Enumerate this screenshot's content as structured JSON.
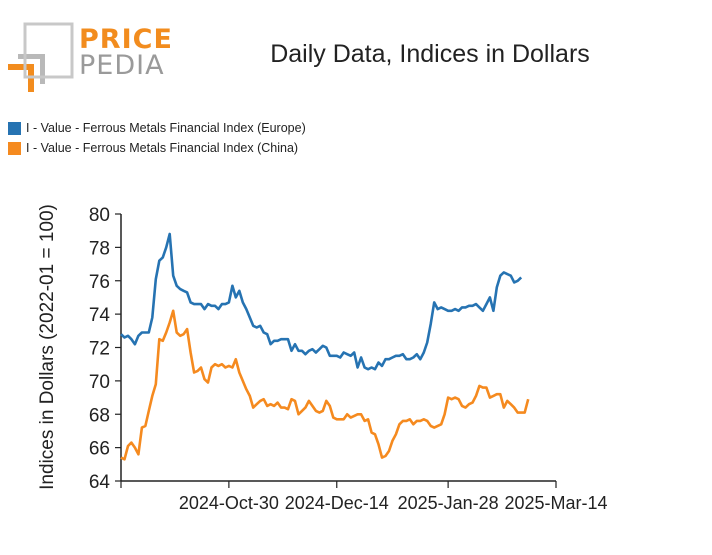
{
  "logo": {
    "line1": "PRICE",
    "line2": "PEDIA"
  },
  "chart_data": {
    "type": "line",
    "title": "Daily Data, Indices in Dollars",
    "ylabel": "Indices in Dollars (2022-01 = 100)",
    "xlabel": "",
    "ylim": [
      64,
      80
    ],
    "yticks": [
      64,
      66,
      68,
      70,
      72,
      74,
      76,
      78,
      80
    ],
    "x_range": [
      0,
      125
    ],
    "xticks": [
      {
        "x": 31,
        "label": "2024-Oct-30"
      },
      {
        "x": 62,
        "label": "2024-Dec-14"
      },
      {
        "x": 94,
        "label": "2025-Jan-28"
      },
      {
        "x": 125,
        "label": "2025-Mar-14"
      }
    ],
    "grid": false,
    "legend_position": "top-left",
    "series": [
      {
        "name": "I - Value - Ferrous Metals Financial Index (Europe)",
        "color": "#2673b2",
        "points": [
          [
            0,
            72.8
          ],
          [
            1,
            72.6
          ],
          [
            2,
            72.7
          ],
          [
            3,
            72.5
          ],
          [
            4,
            72.2
          ],
          [
            5,
            72.7
          ],
          [
            6,
            72.9
          ],
          [
            7,
            72.9
          ],
          [
            8,
            72.9
          ],
          [
            9,
            73.8
          ],
          [
            10,
            76.1
          ],
          [
            11,
            77.2
          ],
          [
            12,
            77.4
          ],
          [
            13,
            78.0
          ],
          [
            14,
            78.8
          ],
          [
            15,
            76.3
          ],
          [
            16,
            75.7
          ],
          [
            17,
            75.5
          ],
          [
            18,
            75.4
          ],
          [
            19,
            75.3
          ],
          [
            20,
            74.7
          ],
          [
            21,
            74.6
          ],
          [
            22,
            74.6
          ],
          [
            23,
            74.6
          ],
          [
            24,
            74.3
          ],
          [
            25,
            74.6
          ],
          [
            26,
            74.5
          ],
          [
            27,
            74.5
          ],
          [
            28,
            74.3
          ],
          [
            29,
            74.6
          ],
          [
            30,
            74.6
          ],
          [
            31,
            74.7
          ],
          [
            32,
            75.7
          ],
          [
            33,
            75.0
          ],
          [
            34,
            75.4
          ],
          [
            35,
            74.7
          ],
          [
            36,
            74.3
          ],
          [
            37,
            73.8
          ],
          [
            38,
            73.3
          ],
          [
            39,
            73.2
          ],
          [
            40,
            73.3
          ],
          [
            41,
            72.9
          ],
          [
            42,
            72.8
          ],
          [
            43,
            72.2
          ],
          [
            44,
            72.4
          ],
          [
            45,
            72.4
          ],
          [
            46,
            72.5
          ],
          [
            47,
            72.5
          ],
          [
            48,
            72.5
          ],
          [
            49,
            71.8
          ],
          [
            50,
            72.2
          ],
          [
            51,
            71.8
          ],
          [
            52,
            71.8
          ],
          [
            53,
            71.6
          ],
          [
            54,
            71.8
          ],
          [
            55,
            71.9
          ],
          [
            56,
            71.7
          ],
          [
            57,
            71.9
          ],
          [
            58,
            72.1
          ],
          [
            59,
            72.0
          ],
          [
            60,
            71.5
          ],
          [
            61,
            71.5
          ],
          [
            62,
            71.5
          ],
          [
            63,
            71.4
          ],
          [
            64,
            71.7
          ],
          [
            65,
            71.6
          ],
          [
            66,
            71.5
          ],
          [
            67,
            71.7
          ],
          [
            68,
            70.8
          ],
          [
            69,
            71.4
          ],
          [
            70,
            70.8
          ],
          [
            71,
            70.7
          ],
          [
            72,
            70.8
          ],
          [
            73,
            70.7
          ],
          [
            74,
            71.1
          ],
          [
            75,
            70.9
          ],
          [
            76,
            71.3
          ],
          [
            77,
            71.3
          ],
          [
            78,
            71.4
          ],
          [
            79,
            71.5
          ],
          [
            80,
            71.5
          ],
          [
            81,
            71.6
          ],
          [
            82,
            71.3
          ],
          [
            83,
            71.3
          ],
          [
            84,
            71.4
          ],
          [
            85,
            71.6
          ],
          [
            86,
            71.3
          ],
          [
            87,
            71.7
          ],
          [
            88,
            72.3
          ],
          [
            89,
            73.4
          ],
          [
            90,
            74.7
          ],
          [
            91,
            74.3
          ],
          [
            92,
            74.4
          ],
          [
            93,
            74.3
          ],
          [
            94,
            74.2
          ],
          [
            95,
            74.2
          ],
          [
            96,
            74.3
          ],
          [
            97,
            74.2
          ],
          [
            98,
            74.4
          ],
          [
            99,
            74.4
          ],
          [
            100,
            74.5
          ],
          [
            101,
            74.5
          ],
          [
            102,
            74.6
          ],
          [
            103,
            74.4
          ],
          [
            104,
            74.2
          ],
          [
            105,
            74.6
          ],
          [
            106,
            75.0
          ],
          [
            107,
            74.2
          ],
          [
            108,
            75.6
          ],
          [
            109,
            76.3
          ],
          [
            110,
            76.5
          ],
          [
            111,
            76.4
          ],
          [
            112,
            76.3
          ],
          [
            113,
            75.9
          ],
          [
            114,
            76.0
          ],
          [
            115,
            76.2
          ]
        ]
      },
      {
        "name": "I - Value - Ferrous Metals Financial Index (China)",
        "color": "#f58a1f",
        "points": [
          [
            0,
            65.4
          ],
          [
            1,
            65.3
          ],
          [
            2,
            66.1
          ],
          [
            3,
            66.3
          ],
          [
            4,
            66.0
          ],
          [
            5,
            65.6
          ],
          [
            6,
            67.2
          ],
          [
            7,
            67.3
          ],
          [
            8,
            68.2
          ],
          [
            9,
            69.1
          ],
          [
            10,
            69.8
          ],
          [
            11,
            72.5
          ],
          [
            12,
            72.4
          ],
          [
            13,
            72.9
          ],
          [
            14,
            73.5
          ],
          [
            15,
            74.2
          ],
          [
            16,
            72.9
          ],
          [
            17,
            72.7
          ],
          [
            18,
            72.8
          ],
          [
            19,
            73.1
          ],
          [
            20,
            71.7
          ],
          [
            21,
            70.5
          ],
          [
            22,
            70.6
          ],
          [
            23,
            70.8
          ],
          [
            24,
            70.1
          ],
          [
            25,
            69.9
          ],
          [
            26,
            70.8
          ],
          [
            27,
            71.0
          ],
          [
            28,
            70.9
          ],
          [
            29,
            71.0
          ],
          [
            30,
            70.8
          ],
          [
            31,
            70.9
          ],
          [
            32,
            70.8
          ],
          [
            33,
            71.3
          ],
          [
            34,
            70.5
          ],
          [
            35,
            70.0
          ],
          [
            36,
            69.5
          ],
          [
            37,
            69.1
          ],
          [
            38,
            68.4
          ],
          [
            39,
            68.6
          ],
          [
            40,
            68.8
          ],
          [
            41,
            68.9
          ],
          [
            42,
            68.5
          ],
          [
            43,
            68.6
          ],
          [
            44,
            68.5
          ],
          [
            45,
            68.7
          ],
          [
            46,
            68.4
          ],
          [
            47,
            68.4
          ],
          [
            48,
            68.3
          ],
          [
            49,
            68.9
          ],
          [
            50,
            68.8
          ],
          [
            51,
            68.0
          ],
          [
            52,
            68.2
          ],
          [
            53,
            68.4
          ],
          [
            54,
            68.8
          ],
          [
            55,
            68.5
          ],
          [
            56,
            68.2
          ],
          [
            57,
            68.1
          ],
          [
            58,
            68.2
          ],
          [
            59,
            68.8
          ],
          [
            60,
            68.5
          ],
          [
            61,
            67.8
          ],
          [
            62,
            67.7
          ],
          [
            63,
            67.7
          ],
          [
            64,
            67.7
          ],
          [
            65,
            68.0
          ],
          [
            66,
            67.8
          ],
          [
            67,
            67.9
          ],
          [
            68,
            68.0
          ],
          [
            69,
            68.0
          ],
          [
            70,
            67.6
          ],
          [
            71,
            67.7
          ],
          [
            72,
            66.9
          ],
          [
            73,
            66.8
          ],
          [
            74,
            66.2
          ],
          [
            75,
            65.4
          ],
          [
            76,
            65.5
          ],
          [
            77,
            65.8
          ],
          [
            78,
            66.4
          ],
          [
            79,
            66.8
          ],
          [
            80,
            67.4
          ],
          [
            81,
            67.6
          ],
          [
            82,
            67.6
          ],
          [
            83,
            67.7
          ],
          [
            84,
            67.4
          ],
          [
            85,
            67.6
          ],
          [
            86,
            67.6
          ],
          [
            87,
            67.7
          ],
          [
            88,
            67.6
          ],
          [
            89,
            67.3
          ],
          [
            90,
            67.2
          ],
          [
            91,
            67.3
          ],
          [
            92,
            67.4
          ],
          [
            93,
            68.0
          ],
          [
            94,
            69.0
          ],
          [
            95,
            68.9
          ],
          [
            96,
            69.0
          ],
          [
            97,
            68.9
          ],
          [
            98,
            68.5
          ],
          [
            99,
            68.4
          ],
          [
            100,
            68.6
          ],
          [
            101,
            68.7
          ],
          [
            102,
            69.1
          ],
          [
            103,
            69.7
          ],
          [
            104,
            69.6
          ],
          [
            105,
            69.6
          ],
          [
            106,
            69.0
          ],
          [
            107,
            69.1
          ],
          [
            108,
            69.2
          ],
          [
            109,
            69.2
          ],
          [
            110,
            68.4
          ],
          [
            111,
            68.8
          ],
          [
            112,
            68.6
          ],
          [
            113,
            68.4
          ],
          [
            114,
            68.1
          ],
          [
            115,
            68.1
          ],
          [
            116,
            68.1
          ],
          [
            117,
            68.9
          ]
        ]
      }
    ]
  }
}
